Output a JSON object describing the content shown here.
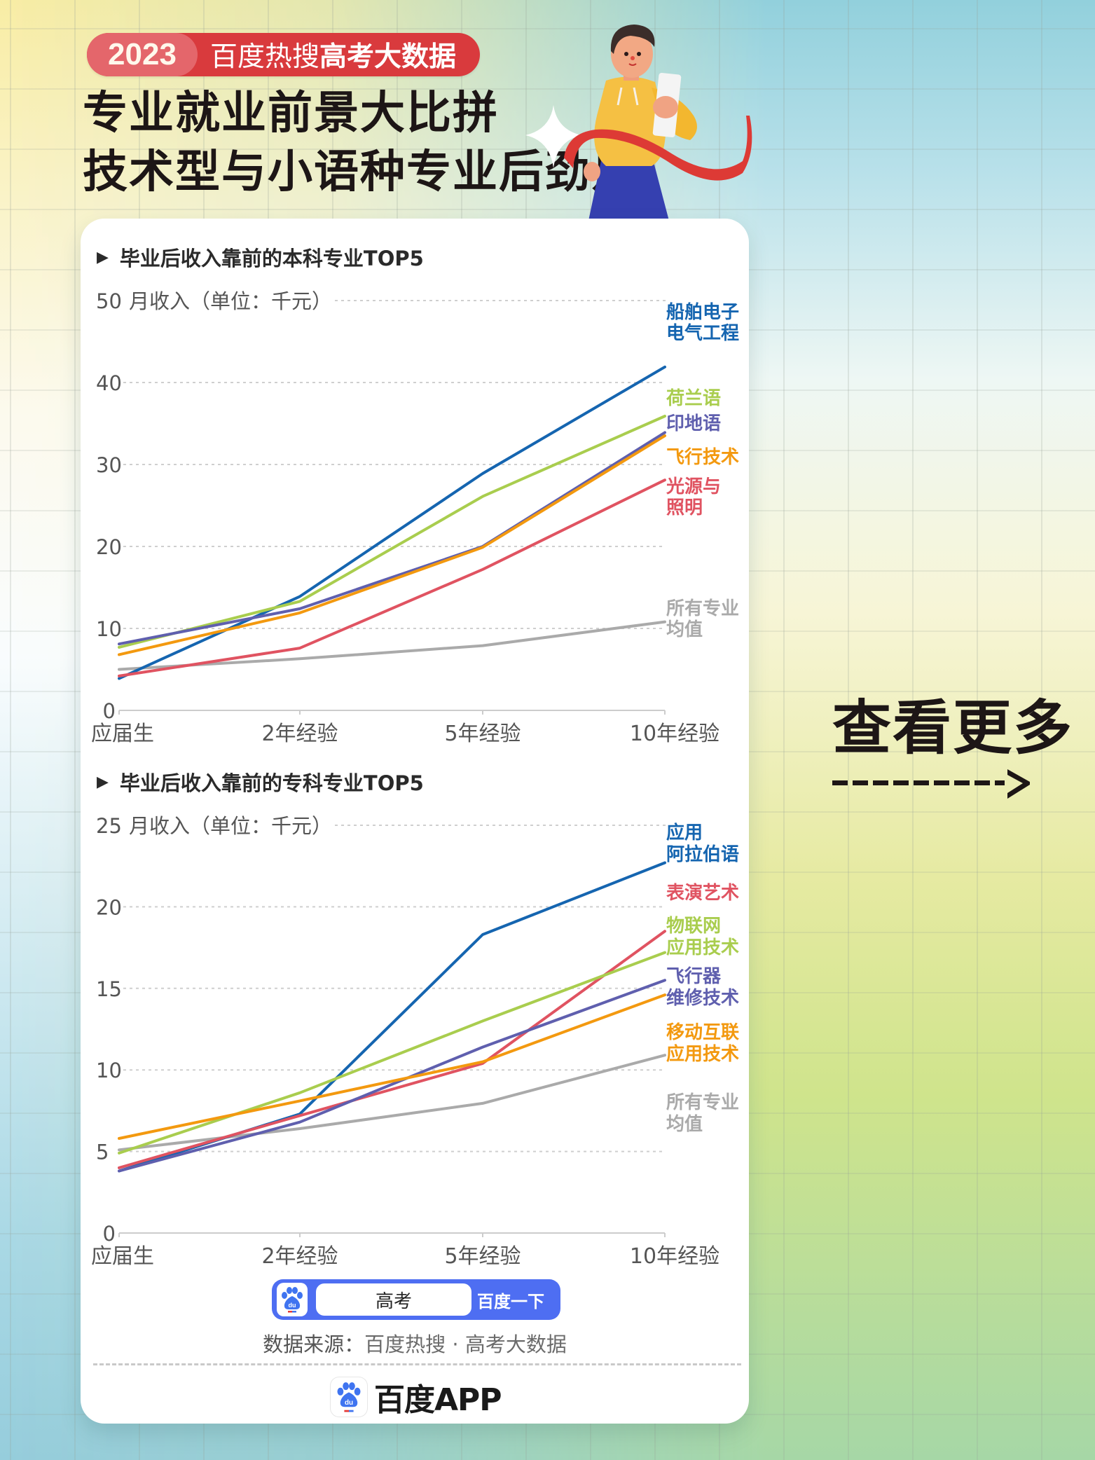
{
  "header": {
    "badge_year": "2023",
    "badge_light": "百度热搜",
    "badge_bold": "高考大数据",
    "headline_line1": "专业就业前景大比拼",
    "headline_line2": "技术型与小语种专业后劲足",
    "badge_color": "#d93a3d"
  },
  "side": {
    "more_label": "查看更多",
    "arrow_icon": "dashed-arrow-right"
  },
  "charts": [
    {
      "title": "毕业后收入靠前的本科专业TOP5",
      "ylabel": "月收入（单位：千元）"
    },
    {
      "title": "毕业后收入靠前的专科专业TOP5",
      "ylabel": "月收入（单位：千元）"
    }
  ],
  "search": {
    "query": "高考",
    "button_label": "百度一下",
    "logo_icon": "baidu-paw-icon"
  },
  "footer": {
    "source_label": "数据来源：",
    "source_value": "百度热搜 · 高考大数据",
    "app_name": "百度APP"
  },
  "chart_data": [
    {
      "type": "line",
      "title": "毕业后收入靠前的本科专业TOP5",
      "xlabel": "",
      "ylabel": "月收入（单位：千元）",
      "categories": [
        "应届生",
        "2年经验",
        "5年经验",
        "10年经验"
      ],
      "ylim": [
        0,
        50
      ],
      "yticks": [
        0,
        10,
        20,
        30,
        40,
        50
      ],
      "grid": true,
      "legend_position": "right-end-labels",
      "series": [
        {
          "name": "船舶电子电气工程",
          "label_lines": [
            "船舶电子",
            "电气工程"
          ],
          "color": "#1565b0",
          "values": [
            3.9,
            13.9,
            28.9,
            41.9
          ]
        },
        {
          "name": "荷兰语",
          "label_lines": [
            "荷兰语"
          ],
          "color": "#a9cd4e",
          "values": [
            7.7,
            13.3,
            26.1,
            35.9
          ]
        },
        {
          "name": "印地语",
          "label_lines": [
            "印地语"
          ],
          "color": "#5f5fae",
          "values": [
            8.1,
            12.4,
            20.0,
            33.9
          ]
        },
        {
          "name": "飞行技术",
          "label_lines": [
            "飞行技术"
          ],
          "color": "#f3990f",
          "values": [
            6.8,
            11.9,
            19.9,
            33.5
          ]
        },
        {
          "name": "光源与照明",
          "label_lines": [
            "光源与",
            "照明"
          ],
          "color": "#e05361",
          "values": [
            4.2,
            7.6,
            17.2,
            28.1
          ]
        },
        {
          "name": "所有专业均值",
          "label_lines": [
            "所有专业",
            "均值"
          ],
          "color": "#aaaaaa",
          "values": [
            5.0,
            6.3,
            7.9,
            10.8
          ]
        }
      ]
    },
    {
      "type": "line",
      "title": "毕业后收入靠前的专科专业TOP5",
      "xlabel": "",
      "ylabel": "月收入（单位：千元）",
      "categories": [
        "应届生",
        "2年经验",
        "5年经验",
        "10年经验"
      ],
      "ylim": [
        0,
        25
      ],
      "yticks": [
        0,
        5,
        10,
        15,
        20,
        25
      ],
      "grid": true,
      "legend_position": "right-end-labels",
      "series": [
        {
          "name": "应用阿拉伯语",
          "label_lines": [
            "应用",
            "阿拉伯语"
          ],
          "color": "#1565b0",
          "values": [
            3.8,
            7.3,
            18.3,
            22.7
          ]
        },
        {
          "name": "表演艺术",
          "label_lines": [
            "表演艺术"
          ],
          "color": "#e05361",
          "values": [
            4.0,
            7.2,
            10.4,
            18.5
          ]
        },
        {
          "name": "物联网应用技术",
          "label_lines": [
            "物联网",
            "应用技术"
          ],
          "color": "#a9cd4e",
          "values": [
            4.9,
            8.6,
            13.0,
            17.2
          ]
        },
        {
          "name": "飞行器维修技术",
          "label_lines": [
            "飞行器",
            "维修技术"
          ],
          "color": "#5f5fae",
          "values": [
            3.8,
            6.8,
            11.4,
            15.5
          ]
        },
        {
          "name": "移动互联应用技术",
          "label_lines": [
            "移动互联",
            "应用技术"
          ],
          "color": "#f3990f",
          "values": [
            5.8,
            8.1,
            10.5,
            14.6
          ]
        },
        {
          "name": "所有专业均值",
          "label_lines": [
            "所有专业",
            "均值"
          ],
          "color": "#aaaaaa",
          "values": [
            5.1,
            6.4,
            7.95,
            10.9
          ]
        }
      ]
    }
  ]
}
